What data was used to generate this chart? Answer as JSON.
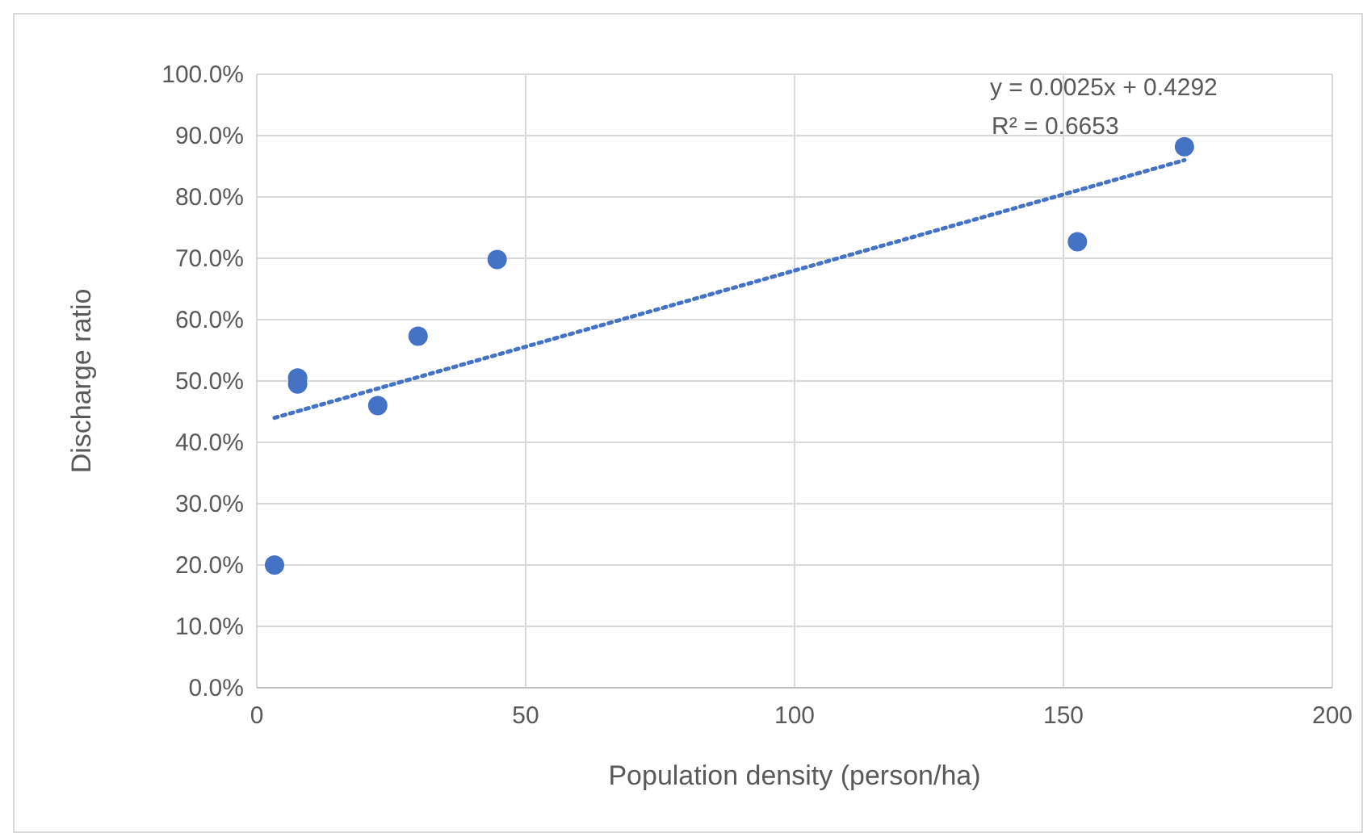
{
  "chart_data": {
    "type": "scatter",
    "xlabel": "Population density (person/ha)",
    "ylabel": "Discharge ratio",
    "xlim": [
      0,
      200
    ],
    "xticks": [
      0,
      50,
      100,
      150,
      200
    ],
    "ylim": [
      0,
      1
    ],
    "yticks": [
      {
        "value": 0,
        "label": "0.0%"
      },
      {
        "value": 0.1,
        "label": "10.0%"
      },
      {
        "value": 0.2,
        "label": "20.0%"
      },
      {
        "value": 0.3,
        "label": "30.0%"
      },
      {
        "value": 0.4,
        "label": "40.0%"
      },
      {
        "value": 0.5,
        "label": "50.0%"
      },
      {
        "value": 0.6,
        "label": "60.0%"
      },
      {
        "value": 0.7,
        "label": "70.0%"
      },
      {
        "value": 0.8,
        "label": "80.0%"
      },
      {
        "value": 0.9,
        "label": "90.0%"
      },
      {
        "value": 1,
        "label": "100.0%"
      }
    ],
    "grid": true,
    "series": [
      {
        "color": "#4472c4",
        "marker": "circle",
        "x": [
          3.3,
          7.6,
          7.6,
          22.5,
          30,
          44.7,
          152.6,
          172.5
        ],
        "values": [
          0.2,
          0.505,
          0.495,
          0.46,
          0.573,
          0.698,
          0.727,
          0.882
        ]
      },
      {
        "type": "line",
        "color": "#4472c4",
        "line_style": "dotted",
        "x": [
          3.3,
          172.5
        ],
        "values": [
          0.44,
          0.86
        ]
      }
    ],
    "annotations": [
      "y = 0.0025x + 0.4292",
      "R² = 0.6653"
    ]
  }
}
